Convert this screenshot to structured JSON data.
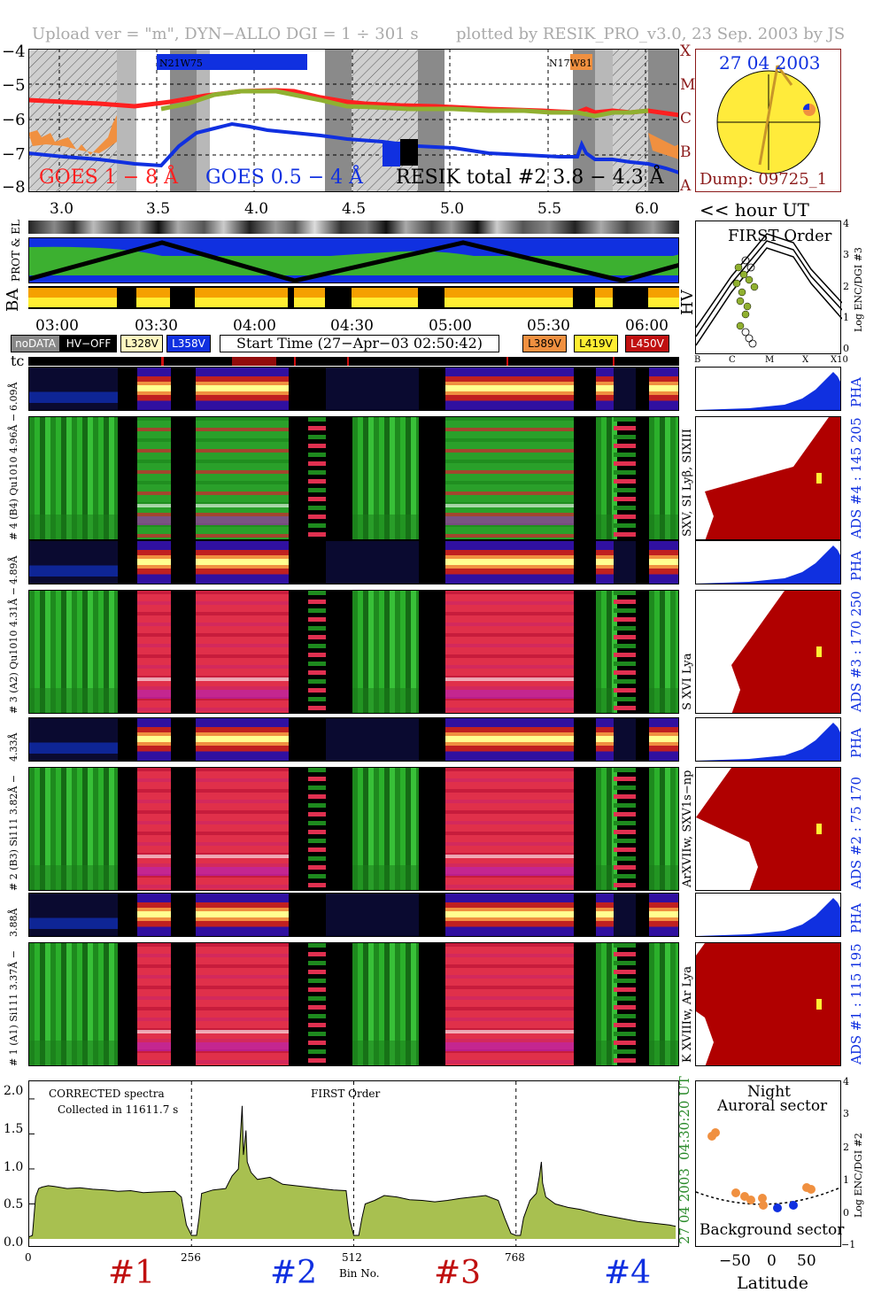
{
  "header": {
    "upload": "Upload ver = \"m\", DYN−ALLO DGI =   1 ÷ 301 s",
    "plotted": "plotted by RESIK_PRO_v3.0, 23 Sep. 2003 by JS"
  },
  "goes_panel": {
    "yticks": [
      "−4",
      "−5",
      "−6",
      "−7",
      "−8"
    ],
    "class_letters": [
      "X",
      "M",
      "C",
      "B",
      "A"
    ],
    "label_goes18": "GOES 1 − 8 Å",
    "label_goes054": "GOES 0.5 − 4 Å",
    "label_resik": "RESIK total #2  3.8 − 4.3 Å",
    "region1": "N21W75",
    "region2": "N17W81",
    "colors": {
      "goes18": "#ff2020",
      "goes054": "#1030e0",
      "resik": "#90b030",
      "orange": "#f09040"
    }
  },
  "sun_panel": {
    "date": "27 04 2003",
    "dump": "Dump: 09725_1"
  },
  "hour_axis": {
    "ticks": [
      "3.0",
      "3.5",
      "4.0",
      "4.5",
      "5.0",
      "5.5",
      "6.0"
    ],
    "label": "<< hour UT"
  },
  "side_labels": {
    "prot_el": "PROT & EL",
    "ba": "BA",
    "hv": "HV",
    "tc": "tc"
  },
  "first_order_panel": {
    "title": "FIRST Order",
    "yticks": [
      "4",
      "3",
      "2",
      "1",
      "0"
    ],
    "xticks": [
      "B",
      "C",
      "M",
      "X",
      "X10"
    ],
    "ylabel": "Log ENC/DGI #3"
  },
  "time_axis": {
    "ticks": [
      "03:00",
      "03:30",
      "04:00",
      "04:30",
      "05:00",
      "05:30",
      "06:00"
    ]
  },
  "legend": {
    "nodata": "noDATA",
    "hvoff": "HV−OFF",
    "l328": "L328V",
    "l358": "L358V",
    "start_time": "Start Time (27−Apr−03 02:50:42)",
    "l389": "L389V",
    "l419": "L419V",
    "l450": "L450V"
  },
  "channels": [
    {
      "pha_label": "6.09Å",
      "spec_label": "# 4 (B4) Qu1010 4.96Å −",
      "lines": "SXV, SI Lyβ, SIXIII",
      "ads": "ADS #4 :   145 205",
      "pha": "PHA"
    },
    {
      "pha_label": "4.89Å",
      "spec_label": "# 3 (A2) Qu1010 4.31Å −",
      "lines": "S XVI Lya",
      "ads": "ADS #3 :   170 250",
      "pha": "PHA"
    },
    {
      "pha_label": "4.33Å",
      "spec_label": "# 2 (B3) Si111 3.82Å −",
      "lines": "ArXVIIw, SXV1s−np",
      "ads": "ADS #2 :   75 170",
      "pha": "PHA"
    },
    {
      "pha_label": "3.88Å",
      "spec_label": "# 1 (A1) Si111 3.37Å −",
      "lines": "K XVIIIw, Ar Lya",
      "ads": "ADS #1 :   115 195",
      "pha": "PHA"
    }
  ],
  "spectrum": {
    "yticks": [
      "2.0",
      "1.5",
      "1.0",
      "0.5",
      "0.0"
    ],
    "xticks": [
      "0",
      "256",
      "512",
      "768"
    ],
    "xlabel": "Bin No.",
    "note1": "CORRECTED spectra",
    "note2": "Collected in 11611.7 s",
    "center": "FIRST Order",
    "date_vert": "27 04 2003",
    "time_vert": "04:30:20 UT",
    "numbers": [
      "#1",
      "#2",
      "#3",
      "#4"
    ]
  },
  "latitude_panel": {
    "night": "Night",
    "auroral": "Auroral sector",
    "background": "Background sector",
    "xticks": [
      "−50",
      "0",
      "50"
    ],
    "xlabel": "Latitude",
    "yticks": [
      "4",
      "3",
      "2",
      "1",
      "0",
      "−1"
    ],
    "ylabel": "Log ENC/DGI #2"
  },
  "chart_data": {
    "type": "line",
    "title": "",
    "xlabel": "Bin No.",
    "ylabel": "",
    "ylim": [
      0,
      2.1
    ],
    "xlim": [
      0,
      1024
    ],
    "series": [
      {
        "values": [
          [
            0,
            0.03
          ],
          [
            5,
            0.05
          ],
          [
            10,
            0.6
          ],
          [
            15,
            0.72
          ],
          [
            20,
            0.74
          ],
          [
            30,
            0.76
          ],
          [
            40,
            0.75
          ],
          [
            60,
            0.72
          ],
          [
            80,
            0.73
          ],
          [
            100,
            0.71
          ],
          [
            120,
            0.7
          ],
          [
            140,
            0.68
          ],
          [
            160,
            0.69
          ],
          [
            180,
            0.66
          ],
          [
            200,
            0.67
          ],
          [
            230,
            0.68
          ],
          [
            240,
            0.6
          ],
          [
            248,
            0.2
          ],
          [
            256,
            0.05
          ],
          [
            264,
            0.05
          ],
          [
            268,
            0.3
          ],
          [
            272,
            0.65
          ],
          [
            290,
            0.7
          ],
          [
            310,
            0.72
          ],
          [
            320,
            0.9
          ],
          [
            330,
            1.0
          ],
          [
            334,
            1.6
          ],
          [
            336,
            1.9
          ],
          [
            338,
            1.2
          ],
          [
            342,
            1.55
          ],
          [
            344,
            1.1
          ],
          [
            350,
            0.95
          ],
          [
            360,
            0.85
          ],
          [
            380,
            0.88
          ],
          [
            400,
            0.78
          ],
          [
            420,
            0.76
          ],
          [
            440,
            0.74
          ],
          [
            460,
            0.72
          ],
          [
            480,
            0.7
          ],
          [
            500,
            0.69
          ],
          [
            505,
            0.3
          ],
          [
            512,
            0.05
          ],
          [
            520,
            0.05
          ],
          [
            525,
            0.3
          ],
          [
            530,
            0.5
          ],
          [
            545,
            0.55
          ],
          [
            560,
            0.62
          ],
          [
            580,
            0.6
          ],
          [
            600,
            0.56
          ],
          [
            620,
            0.55
          ],
          [
            640,
            0.53
          ],
          [
            660,
            0.55
          ],
          [
            680,
            0.58
          ],
          [
            700,
            0.6
          ],
          [
            720,
            0.62
          ],
          [
            740,
            0.55
          ],
          [
            750,
            0.3
          ],
          [
            760,
            0.08
          ],
          [
            768,
            0.05
          ],
          [
            775,
            0.05
          ],
          [
            780,
            0.3
          ],
          [
            790,
            0.55
          ],
          [
            800,
            0.65
          ],
          [
            805,
            0.9
          ],
          [
            808,
            1.1
          ],
          [
            810,
            0.8
          ],
          [
            815,
            0.6
          ],
          [
            830,
            0.5
          ],
          [
            850,
            0.45
          ],
          [
            870,
            0.42
          ],
          [
            900,
            0.35
          ],
          [
            930,
            0.3
          ],
          [
            960,
            0.25
          ],
          [
            990,
            0.22
          ],
          [
            1010,
            0.2
          ],
          [
            1020,
            0.18
          ]
        ]
      }
    ]
  }
}
